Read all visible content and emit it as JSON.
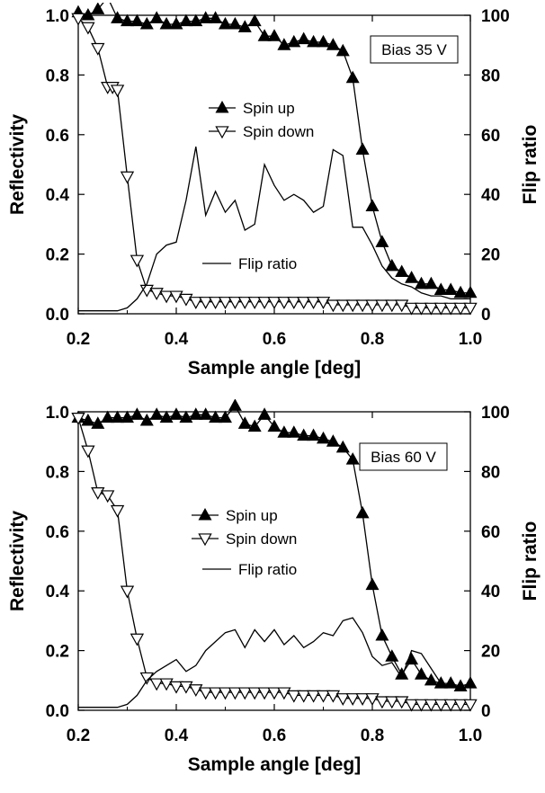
{
  "chart_data": [
    {
      "type": "line",
      "annotation": "Bias 35 V",
      "xlabel": "Sample angle [deg]",
      "ylabel": "Reflectivity",
      "y2label": "Flip ratio",
      "xlim": [
        0.2,
        1.0
      ],
      "ylim": [
        0.0,
        1.0
      ],
      "y2lim": [
        0,
        100
      ],
      "xticks": [
        "0.2",
        "0.4",
        "0.6",
        "0.8",
        "1.0"
      ],
      "yticks": [
        "0.0",
        "0.2",
        "0.4",
        "0.6",
        "0.8",
        "1.0"
      ],
      "y2ticks": [
        "0",
        "20",
        "40",
        "60",
        "80",
        "100"
      ],
      "grid": false,
      "legend_placement": "center",
      "series": [
        {
          "name": "Spin up",
          "marker": "filled-triangle-up",
          "axis": "left",
          "x": [
            0.2,
            0.22,
            0.24,
            0.26,
            0.28,
            0.3,
            0.32,
            0.34,
            0.36,
            0.38,
            0.4,
            0.42,
            0.44,
            0.46,
            0.48,
            0.5,
            0.52,
            0.54,
            0.56,
            0.58,
            0.6,
            0.62,
            0.64,
            0.66,
            0.68,
            0.7,
            0.72,
            0.74,
            0.76,
            0.78,
            0.8,
            0.82,
            0.84,
            0.86,
            0.88,
            0.9,
            0.92,
            0.94,
            0.96,
            0.98,
            1.0
          ],
          "y": [
            1.01,
            1.0,
            1.02,
            1.06,
            0.99,
            0.98,
            0.98,
            0.97,
            0.99,
            0.97,
            0.97,
            0.98,
            0.98,
            0.99,
            0.99,
            0.97,
            0.97,
            0.96,
            0.98,
            0.93,
            0.93,
            0.9,
            0.91,
            0.92,
            0.91,
            0.91,
            0.9,
            0.88,
            0.79,
            0.55,
            0.36,
            0.24,
            0.16,
            0.14,
            0.12,
            0.1,
            0.1,
            0.08,
            0.08,
            0.07,
            0.07
          ]
        },
        {
          "name": "Spin down",
          "marker": "open-triangle-down",
          "axis": "left",
          "x": [
            0.2,
            0.22,
            0.24,
            0.26,
            0.27,
            0.28,
            0.3,
            0.32,
            0.34,
            0.36,
            0.38,
            0.4,
            0.42,
            0.44,
            0.46,
            0.48,
            0.5,
            0.52,
            0.54,
            0.56,
            0.58,
            0.6,
            0.62,
            0.64,
            0.66,
            0.68,
            0.7,
            0.72,
            0.74,
            0.76,
            0.78,
            0.8,
            0.82,
            0.84,
            0.86,
            0.88,
            0.9,
            0.92,
            0.94,
            0.96,
            0.98,
            1.0
          ],
          "y": [
            0.99,
            0.96,
            0.89,
            0.76,
            0.76,
            0.75,
            0.46,
            0.18,
            0.08,
            0.07,
            0.06,
            0.06,
            0.05,
            0.04,
            0.04,
            0.04,
            0.04,
            0.04,
            0.04,
            0.04,
            0.04,
            0.04,
            0.04,
            0.04,
            0.04,
            0.04,
            0.04,
            0.03,
            0.03,
            0.03,
            0.03,
            0.03,
            0.03,
            0.03,
            0.03,
            0.02,
            0.02,
            0.02,
            0.02,
            0.02,
            0.02,
            0.02
          ]
        },
        {
          "name": "Flip ratio",
          "marker": "none",
          "axis": "right",
          "x": [
            0.2,
            0.24,
            0.28,
            0.3,
            0.32,
            0.34,
            0.36,
            0.38,
            0.4,
            0.42,
            0.44,
            0.46,
            0.48,
            0.5,
            0.52,
            0.54,
            0.56,
            0.58,
            0.6,
            0.62,
            0.64,
            0.66,
            0.68,
            0.7,
            0.72,
            0.74,
            0.76,
            0.78,
            0.8,
            0.82,
            0.84,
            0.86,
            0.88,
            0.9,
            0.92,
            0.94,
            0.96,
            0.98,
            1.0
          ],
          "y": [
            1,
            1,
            1,
            2,
            5,
            10,
            20,
            23,
            24,
            38,
            56,
            33,
            41,
            34,
            38,
            28,
            30,
            50,
            43,
            38,
            40,
            38,
            34,
            36,
            55,
            53,
            29,
            29,
            23,
            16,
            12,
            10,
            9,
            7,
            6,
            6,
            5,
            5,
            5
          ]
        }
      ]
    },
    {
      "type": "line",
      "annotation": "Bias 60 V",
      "xlabel": "Sample angle [deg]",
      "ylabel": "Reflectivity",
      "y2label": "Flip ratio",
      "xlim": [
        0.2,
        1.0
      ],
      "ylim": [
        0.0,
        1.0
      ],
      "y2lim": [
        0,
        100
      ],
      "xticks": [
        "0.2",
        "0.4",
        "0.6",
        "0.8",
        "1.0"
      ],
      "yticks": [
        "0.0",
        "0.2",
        "0.4",
        "0.6",
        "0.8",
        "1.0"
      ],
      "y2ticks": [
        "0",
        "20",
        "40",
        "60",
        "80",
        "100"
      ],
      "grid": false,
      "legend_placement": "center",
      "series": [
        {
          "name": "Spin up",
          "marker": "filled-triangle-up",
          "axis": "left",
          "x": [
            0.2,
            0.22,
            0.24,
            0.26,
            0.28,
            0.3,
            0.32,
            0.34,
            0.36,
            0.38,
            0.4,
            0.42,
            0.44,
            0.46,
            0.48,
            0.5,
            0.52,
            0.54,
            0.56,
            0.58,
            0.6,
            0.62,
            0.64,
            0.66,
            0.68,
            0.7,
            0.72,
            0.74,
            0.76,
            0.78,
            0.8,
            0.82,
            0.84,
            0.86,
            0.88,
            0.9,
            0.92,
            0.94,
            0.96,
            0.98,
            1.0
          ],
          "y": [
            0.98,
            0.97,
            0.96,
            0.98,
            0.98,
            0.98,
            0.99,
            0.97,
            0.99,
            0.98,
            0.99,
            0.98,
            0.99,
            0.99,
            0.98,
            0.98,
            1.02,
            0.96,
            0.95,
            0.99,
            0.95,
            0.93,
            0.93,
            0.92,
            0.92,
            0.91,
            0.9,
            0.88,
            0.84,
            0.66,
            0.42,
            0.25,
            0.18,
            0.12,
            0.17,
            0.12,
            0.1,
            0.09,
            0.09,
            0.08,
            0.09
          ]
        },
        {
          "name": "Spin down",
          "marker": "open-triangle-down",
          "axis": "left",
          "x": [
            0.2,
            0.22,
            0.24,
            0.26,
            0.28,
            0.3,
            0.32,
            0.34,
            0.36,
            0.38,
            0.4,
            0.42,
            0.44,
            0.46,
            0.48,
            0.5,
            0.52,
            0.54,
            0.56,
            0.58,
            0.6,
            0.62,
            0.64,
            0.66,
            0.68,
            0.7,
            0.72,
            0.74,
            0.76,
            0.78,
            0.8,
            0.82,
            0.84,
            0.86,
            0.88,
            0.9,
            0.92,
            0.94,
            0.96,
            0.98,
            1.0
          ],
          "y": [
            0.98,
            0.87,
            0.73,
            0.72,
            0.67,
            0.4,
            0.24,
            0.11,
            0.09,
            0.09,
            0.08,
            0.08,
            0.07,
            0.06,
            0.06,
            0.06,
            0.06,
            0.06,
            0.06,
            0.06,
            0.06,
            0.06,
            0.05,
            0.05,
            0.05,
            0.05,
            0.05,
            0.04,
            0.04,
            0.04,
            0.04,
            0.03,
            0.03,
            0.03,
            0.02,
            0.02,
            0.02,
            0.02,
            0.02,
            0.02,
            0.02
          ]
        },
        {
          "name": "Flip ratio",
          "marker": "none",
          "axis": "right",
          "x": [
            0.2,
            0.24,
            0.28,
            0.3,
            0.32,
            0.34,
            0.36,
            0.38,
            0.4,
            0.42,
            0.44,
            0.46,
            0.48,
            0.5,
            0.52,
            0.54,
            0.56,
            0.58,
            0.6,
            0.62,
            0.64,
            0.66,
            0.68,
            0.7,
            0.72,
            0.74,
            0.76,
            0.78,
            0.8,
            0.82,
            0.84,
            0.86,
            0.88,
            0.9,
            0.92,
            0.94,
            0.96,
            0.98,
            1.0
          ],
          "y": [
            1,
            1,
            1,
            2,
            5,
            10,
            13,
            15,
            17,
            13,
            15,
            20,
            23,
            26,
            27,
            21,
            27,
            23,
            27,
            22,
            25,
            21,
            23,
            26,
            25,
            30,
            31,
            26,
            18,
            15,
            16,
            11,
            20,
            19,
            14,
            9,
            8,
            8,
            9
          ]
        }
      ]
    }
  ]
}
